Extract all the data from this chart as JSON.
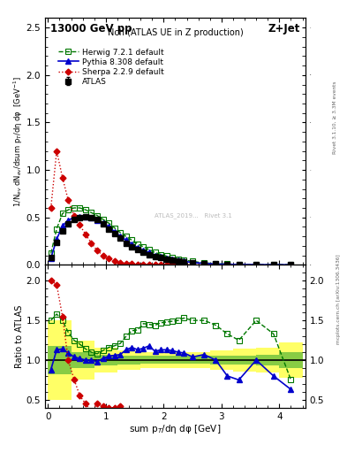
{
  "title_left": "13000 GeV pp",
  "title_right": "Z+Jet",
  "plot_title": "Nch (ATLAS UE in Z production)",
  "xlabel": "sum p$_T$/dη dφ [GeV]",
  "ylabel_main": "1/N$_{ev}$ dN$_{ev}$/dsum p$_T$/dη dφ  [GeV$^{-1}$]",
  "ylabel_ratio": "Ratio to ATLAS",
  "right_label_top": "Rivet 3.1.10, ≥ 3.3M events",
  "right_label_bot": "mcplots.cern.ch [arXiv:1306.3436]",
  "watermark": "ATLAS_2019...   Rivet 3.1",
  "atlas_x": [
    0.05,
    0.15,
    0.25,
    0.35,
    0.45,
    0.55,
    0.65,
    0.75,
    0.85,
    0.95,
    1.05,
    1.15,
    1.25,
    1.35,
    1.45,
    1.55,
    1.65,
    1.75,
    1.85,
    1.95,
    2.05,
    2.15,
    2.25,
    2.35,
    2.5,
    2.7,
    2.9,
    3.1,
    3.3,
    3.6,
    3.9,
    4.2
  ],
  "atlas_y": [
    0.08,
    0.24,
    0.36,
    0.43,
    0.48,
    0.5,
    0.51,
    0.5,
    0.48,
    0.43,
    0.38,
    0.33,
    0.28,
    0.23,
    0.19,
    0.16,
    0.13,
    0.11,
    0.09,
    0.075,
    0.062,
    0.051,
    0.042,
    0.034,
    0.024,
    0.014,
    0.009,
    0.006,
    0.004,
    0.002,
    0.0015,
    0.001
  ],
  "atlas_yerr": [
    0.01,
    0.01,
    0.01,
    0.008,
    0.008,
    0.008,
    0.007,
    0.006,
    0.006,
    0.006,
    0.005,
    0.005,
    0.004,
    0.004,
    0.003,
    0.003,
    0.003,
    0.002,
    0.002,
    0.002,
    0.002,
    0.002,
    0.002,
    0.001,
    0.001,
    0.001,
    0.001,
    0.001,
    0.0005,
    0.0005,
    0.0003,
    0.0003
  ],
  "herwig_x": [
    0.05,
    0.15,
    0.25,
    0.35,
    0.45,
    0.55,
    0.65,
    0.75,
    0.85,
    0.95,
    1.05,
    1.15,
    1.25,
    1.35,
    1.45,
    1.55,
    1.65,
    1.75,
    1.85,
    1.95,
    2.05,
    2.15,
    2.25,
    2.35,
    2.5,
    2.7,
    2.9,
    3.1,
    3.3,
    3.6,
    3.9,
    4.2
  ],
  "herwig_y": [
    0.12,
    0.38,
    0.54,
    0.58,
    0.6,
    0.6,
    0.58,
    0.55,
    0.52,
    0.48,
    0.44,
    0.39,
    0.34,
    0.3,
    0.26,
    0.22,
    0.19,
    0.16,
    0.13,
    0.11,
    0.092,
    0.076,
    0.063,
    0.052,
    0.036,
    0.021,
    0.013,
    0.008,
    0.005,
    0.003,
    0.002,
    0.001
  ],
  "pythia_x": [
    0.05,
    0.15,
    0.25,
    0.35,
    0.45,
    0.55,
    0.65,
    0.75,
    0.85,
    0.95,
    1.05,
    1.15,
    1.25,
    1.35,
    1.45,
    1.55,
    1.65,
    1.75,
    1.85,
    1.95,
    2.05,
    2.15,
    2.25,
    2.35,
    2.5,
    2.7,
    2.9,
    3.1,
    3.3,
    3.6,
    3.9,
    4.2
  ],
  "pythia_y": [
    0.07,
    0.27,
    0.41,
    0.47,
    0.5,
    0.51,
    0.51,
    0.5,
    0.47,
    0.44,
    0.4,
    0.35,
    0.3,
    0.26,
    0.22,
    0.18,
    0.15,
    0.13,
    0.1,
    0.085,
    0.07,
    0.057,
    0.046,
    0.037,
    0.025,
    0.015,
    0.009,
    0.006,
    0.004,
    0.002,
    0.0012,
    0.0008
  ],
  "sherpa_x": [
    0.05,
    0.15,
    0.25,
    0.35,
    0.45,
    0.55,
    0.65,
    0.75,
    0.85,
    0.95,
    1.05,
    1.15,
    1.25,
    1.35,
    1.45,
    1.55,
    1.65,
    1.75,
    1.85,
    1.95,
    2.05,
    2.15,
    2.25,
    2.35,
    2.5,
    2.7,
    2.9
  ],
  "sherpa_y": [
    0.6,
    1.2,
    0.92,
    0.68,
    0.52,
    0.42,
    0.32,
    0.23,
    0.15,
    0.1,
    0.065,
    0.04,
    0.025,
    0.015,
    0.01,
    0.007,
    0.005,
    0.003,
    0.0022,
    0.0016,
    0.0012,
    0.0009,
    0.0007,
    0.0005,
    0.0003,
    0.0002,
    0.00012
  ],
  "herwig_ratio_x": [
    0.05,
    0.15,
    0.25,
    0.35,
    0.45,
    0.55,
    0.65,
    0.75,
    0.85,
    0.95,
    1.05,
    1.15,
    1.25,
    1.35,
    1.45,
    1.55,
    1.65,
    1.75,
    1.85,
    1.95,
    2.05,
    2.15,
    2.25,
    2.35,
    2.5,
    2.7,
    2.9,
    3.1,
    3.3,
    3.6,
    3.9,
    4.2
  ],
  "herwig_ratio": [
    1.5,
    1.58,
    1.5,
    1.35,
    1.25,
    1.2,
    1.14,
    1.1,
    1.08,
    1.12,
    1.16,
    1.18,
    1.21,
    1.3,
    1.37,
    1.38,
    1.46,
    1.45,
    1.44,
    1.47,
    1.48,
    1.49,
    1.5,
    1.53,
    1.5,
    1.5,
    1.44,
    1.33,
    1.25,
    1.5,
    1.33,
    0.75
  ],
  "pythia_ratio_x": [
    0.05,
    0.15,
    0.25,
    0.35,
    0.45,
    0.55,
    0.65,
    0.75,
    0.85,
    0.95,
    1.05,
    1.15,
    1.25,
    1.35,
    1.45,
    1.55,
    1.65,
    1.75,
    1.85,
    1.95,
    2.05,
    2.15,
    2.25,
    2.35,
    2.5,
    2.7,
    2.9,
    3.1,
    3.3,
    3.6,
    3.9,
    4.2
  ],
  "pythia_ratio": [
    0.88,
    1.13,
    1.14,
    1.09,
    1.04,
    1.02,
    1.0,
    1.0,
    0.98,
    1.02,
    1.05,
    1.06,
    1.07,
    1.13,
    1.16,
    1.13,
    1.15,
    1.18,
    1.11,
    1.13,
    1.13,
    1.12,
    1.1,
    1.09,
    1.04,
    1.07,
    1.0,
    0.8,
    0.75,
    1.0,
    0.8,
    0.63
  ],
  "sherpa_ratio_x": [
    0.05,
    0.15,
    0.25,
    0.35,
    0.45,
    0.55,
    0.65,
    0.75,
    0.85,
    0.95,
    1.05,
    1.15,
    1.25
  ],
  "sherpa_ratio": [
    2.0,
    1.95,
    1.55,
    1.0,
    0.76,
    0.55,
    0.45,
    0.35,
    0.45,
    0.42,
    0.4,
    0.4,
    0.42
  ],
  "band_x_edges": [
    0.0,
    0.4,
    0.8,
    1.2,
    1.6,
    2.0,
    2.4,
    2.8,
    3.2,
    3.6,
    4.0,
    4.4
  ],
  "band_green_lo": [
    0.82,
    0.9,
    0.93,
    0.94,
    0.95,
    0.95,
    0.95,
    0.94,
    0.94,
    0.93,
    0.9,
    0.85
  ],
  "band_green_hi": [
    1.18,
    1.1,
    1.07,
    1.06,
    1.05,
    1.05,
    1.05,
    1.06,
    1.06,
    1.07,
    1.1,
    1.15
  ],
  "band_yellow_lo": [
    0.5,
    0.76,
    0.84,
    0.88,
    0.9,
    0.9,
    0.9,
    0.88,
    0.86,
    0.84,
    0.78,
    0.65
  ],
  "band_yellow_hi": [
    1.5,
    1.24,
    1.16,
    1.12,
    1.1,
    1.1,
    1.1,
    1.12,
    1.14,
    1.16,
    1.22,
    1.35
  ],
  "atlas_color": "#000000",
  "herwig_color": "#007700",
  "pythia_color": "#0000cc",
  "sherpa_color": "#cc0000",
  "xlim": [
    -0.05,
    4.45
  ],
  "ylim_main": [
    0.0,
    2.6
  ],
  "ylim_ratio": [
    0.4,
    2.2
  ]
}
